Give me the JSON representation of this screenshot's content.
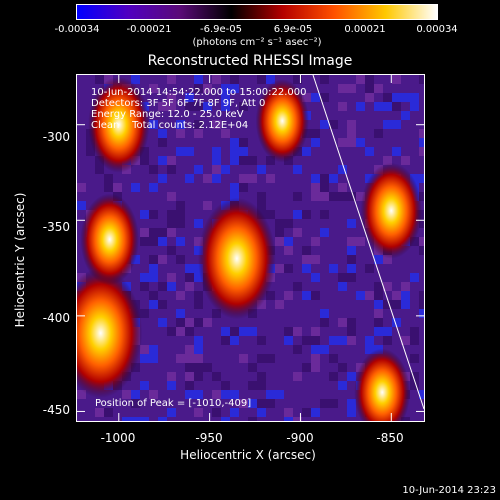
{
  "colorbar": {
    "ticks": [
      "-0.00034",
      "-0.00021",
      "-6.9e-05",
      "6.9e-05",
      "0.00021",
      "0.00034"
    ],
    "unit_label": "(photons cm⁻² s⁻¹ asec⁻²)",
    "colors": [
      "#0000ff",
      "#5000c0",
      "#5a0a78",
      "#000000",
      "#b40000",
      "#ff5000",
      "#ffc800",
      "#ffffff"
    ]
  },
  "chart_data": {
    "type": "heatmap",
    "title": "Reconstructed RHESSI Image",
    "xlabel": "Heliocentric X (arcsec)",
    "ylabel": "Heliocentric Y (arcsec)",
    "xlim": [
      -1023,
      -832
    ],
    "ylim": [
      -455,
      -274
    ],
    "xticks": [
      -1000,
      -950,
      -900,
      -850
    ],
    "yticks": [
      -300,
      -350,
      -400,
      -450
    ],
    "colorbar_range": [
      -0.00034,
      0.00034
    ],
    "peak": [
      -1010,
      -409
    ],
    "sources": [
      {
        "x": -1010,
        "y": -409,
        "relative_intensity": 1.0
      },
      {
        "x": -935,
        "y": -370,
        "relative_intensity": 0.9
      },
      {
        "x": -1005,
        "y": -360,
        "relative_intensity": 0.55
      },
      {
        "x": -1000,
        "y": -300,
        "relative_intensity": 0.6
      },
      {
        "x": -850,
        "y": -345,
        "relative_intensity": 0.6
      },
      {
        "x": -855,
        "y": -440,
        "relative_intensity": 0.5
      },
      {
        "x": -910,
        "y": -298,
        "relative_intensity": 0.45
      }
    ]
  },
  "annotations": {
    "line1": "10-Jun-2014 14:54:22.000 to 15:00:22.000",
    "line2": "Detectors: 3F 5F 6F 7F 8F 9F, Att 0",
    "line3": "Energy Range: 12.0 - 25.0 keV",
    "line4": "Clean    Total counts: 2.12E+04",
    "peak_label": "Position of Peak = [-1010,-409]"
  },
  "footer": {
    "timestamp": "10-Jun-2014 23:23"
  }
}
